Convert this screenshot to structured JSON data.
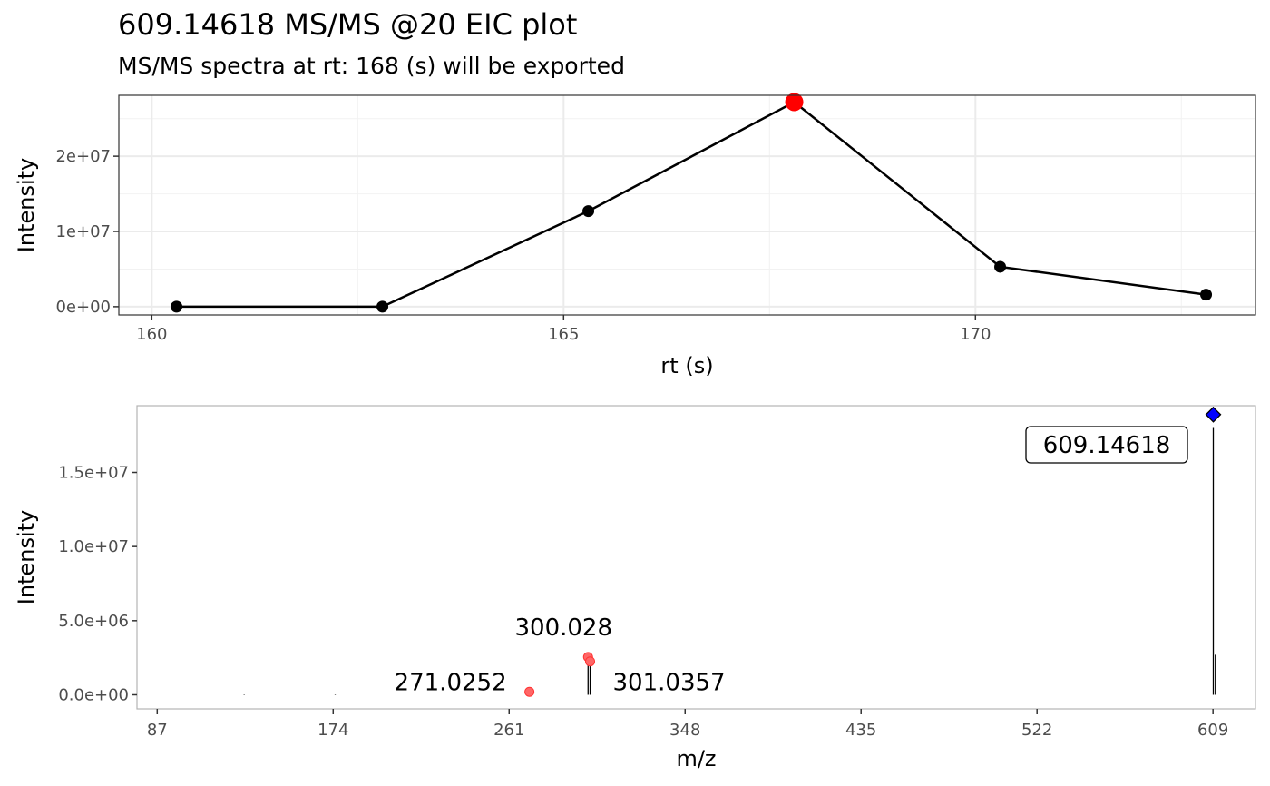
{
  "title": "609.14618 MS/MS @20 EIC plot",
  "subtitle": "MS/MS spectra at rt: 168 (s) will be exported",
  "chart_data": [
    {
      "type": "line",
      "xlabel": "rt (s)",
      "ylabel": "Intensity",
      "xlim": [
        159.6,
        173.4
      ],
      "ylim": [
        -1100000,
        28100000
      ],
      "x_ticks": [
        160,
        165,
        170
      ],
      "x_tick_labels": [
        "160",
        "165",
        "170"
      ],
      "y_ticks": [
        0,
        10000000,
        20000000
      ],
      "y_tick_labels": [
        "0e+00",
        "1e+07",
        "2e+07"
      ],
      "grid": true,
      "x": [
        160.3,
        162.8,
        165.3,
        167.8,
        170.3,
        172.8
      ],
      "y": [
        0,
        0,
        12700000,
        27200000,
        5300000,
        1600000
      ],
      "highlight": {
        "x": 167.8,
        "y": 27200000,
        "color": "#ff0000"
      },
      "colors": {
        "line": "#000000",
        "point": "#000000",
        "highlight": "#ff0000"
      }
    },
    {
      "type": "bar",
      "xlabel": "m/z",
      "ylabel": "Intensity",
      "xlim": [
        77,
        630
      ],
      "ylim": [
        -950000,
        19500000
      ],
      "x_ticks": [
        87,
        174,
        261,
        348,
        435,
        522,
        609
      ],
      "x_tick_labels": [
        "87",
        "174",
        "261",
        "348",
        "435",
        "522",
        "609"
      ],
      "y_ticks": [
        0,
        5000000,
        10000000,
        15000000
      ],
      "y_tick_labels": [
        "0.0e+00",
        "5.0e+06",
        "1.0e+07",
        "1.5e+07"
      ],
      "grid": false,
      "peaks": [
        {
          "mz": 130,
          "intensity": 30000
        },
        {
          "mz": 175,
          "intensity": 30000
        },
        {
          "mz": 271.0252,
          "intensity": 200000
        },
        {
          "mz": 300.028,
          "intensity": 2500000
        },
        {
          "mz": 301.0357,
          "intensity": 2200000
        },
        {
          "mz": 609.14618,
          "intensity": 18000000
        },
        {
          "mz": 610.15,
          "intensity": 2700000
        }
      ],
      "fragment_markers": [
        {
          "mz": 271.0252,
          "intensity": 200000,
          "label": "271.0252"
        },
        {
          "mz": 300.028,
          "intensity": 2550000,
          "label": "300.028"
        },
        {
          "mz": 301.0357,
          "intensity": 2250000,
          "label": "301.0357"
        }
      ],
      "precursor": {
        "mz": 609.14618,
        "intensity": 18900000,
        "label": "609.14618"
      },
      "colors": {
        "peak": "#000000",
        "fragment": "#ff6666",
        "precursor": "#0000ff"
      }
    }
  ]
}
